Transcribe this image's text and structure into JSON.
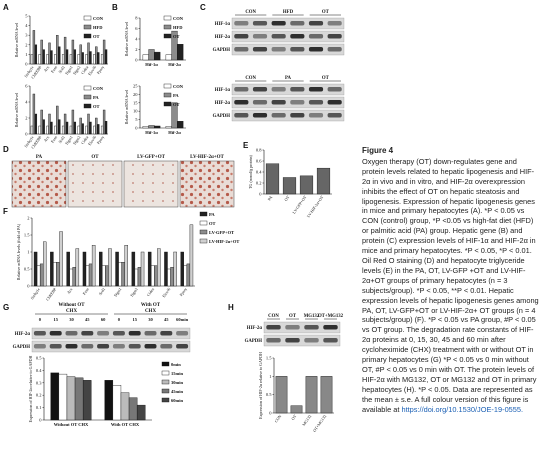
{
  "panels": [
    "A",
    "B",
    "C",
    "D",
    "E",
    "F",
    "G",
    "H"
  ],
  "chart_data": [
    {
      "type": "bar",
      "y_label": "Relative mRNA level",
      "categories": [
        "Srebp1c",
        "ChREBP",
        "Acc",
        "Fasn",
        "Scd1",
        "Dgat1",
        "Dgat2",
        "Cidea",
        "Elovl6",
        "Pparγ"
      ],
      "series": [
        {
          "name": "CON",
          "color": "#ffffff",
          "values": [
            1,
            1,
            1,
            1,
            1,
            1,
            1,
            1,
            1,
            1
          ]
        },
        {
          "name": "HFD",
          "color": "#8c8c8c",
          "values": [
            3.5,
            2.5,
            2.2,
            3,
            2.8,
            2.5,
            2,
            2.2,
            1.8,
            2.5
          ]
        },
        {
          "name": "OT",
          "color": "#222222",
          "values": [
            2,
            1.5,
            1.4,
            1.8,
            1.5,
            1.5,
            1.2,
            1.3,
            1.2,
            1.5
          ]
        }
      ],
      "ylim": [
        0,
        5
      ],
      "yticks": [
        0,
        1,
        2,
        3,
        4,
        5
      ]
    },
    {
      "type": "bar",
      "y_label": "Relative mRNA level",
      "categories": [
        "Srebp1c",
        "ChREBP",
        "Acc",
        "Fasn",
        "Scd1",
        "Dgat1",
        "Dgat2",
        "Cidea",
        "Elovl6",
        "Pparγ"
      ],
      "series": [
        {
          "name": "CON",
          "color": "#ffffff",
          "values": [
            1,
            1,
            1,
            1,
            1,
            1,
            1,
            1,
            1,
            1
          ]
        },
        {
          "name": "PA",
          "color": "#8c8c8c",
          "values": [
            5,
            3,
            2.5,
            3.5,
            2.5,
            3,
            2,
            2.5,
            2,
            3
          ]
        },
        {
          "name": "OT",
          "color": "#222222",
          "values": [
            2.5,
            1.8,
            1.5,
            1.8,
            1.5,
            1.5,
            1.3,
            1.5,
            1.2,
            1.6
          ]
        }
      ],
      "ylim": [
        0,
        6
      ],
      "yticks": [
        0,
        2,
        4,
        6
      ]
    },
    {
      "type": "bar",
      "y_label": "Relative mRNA level",
      "categories": [
        "Hif-1α",
        "Hif-2α"
      ],
      "series": [
        {
          "name": "CON",
          "color": "#ffffff",
          "values": [
            1,
            1
          ]
        },
        {
          "name": "HFD",
          "color": "#8c8c8c",
          "values": [
            2,
            5.5
          ]
        },
        {
          "name": "OT",
          "color": "#222222",
          "values": [
            1.5,
            3
          ]
        }
      ],
      "ylim": [
        0,
        8
      ],
      "yticks": [
        0,
        2,
        4,
        6,
        8
      ]
    },
    {
      "type": "bar",
      "y_label": "Relative mRNA level",
      "categories": [
        "Hif-1α",
        "Hif-2α"
      ],
      "series": [
        {
          "name": "CON",
          "color": "#ffffff",
          "values": [
            1,
            1
          ]
        },
        {
          "name": "PA",
          "color": "#8c8c8c",
          "values": [
            1.5,
            15
          ]
        },
        {
          "name": "OT",
          "color": "#222222",
          "values": [
            1.2,
            4
          ]
        }
      ],
      "ylim": [
        0,
        25
      ],
      "yticks": [
        0,
        5,
        10,
        15,
        20,
        25
      ]
    },
    {
      "type": "bar",
      "y_label": "TG (mmol/g protein)",
      "categories": [
        "PA",
        "OT",
        "LV-GFP+OT",
        "LV-HIF-2α+OT"
      ],
      "values": [
        0.55,
        0.3,
        0.33,
        0.47
      ],
      "color": "#666666",
      "ylim": [
        0,
        0.8
      ],
      "yticks": [
        0,
        0.2,
        0.4,
        0.6,
        0.8
      ]
    },
    {
      "type": "bar",
      "y_label": "Relative mRNA levels (fold of PA)",
      "categories": [
        "Srebp1c",
        "ChREBP",
        "Acc",
        "Fasn",
        "Scd1",
        "Dgat1",
        "Dgat2",
        "Cidea",
        "Elovl6",
        "Pparγ"
      ],
      "series": [
        {
          "name": "PA",
          "color": "#222222",
          "values": [
            1,
            1,
            1,
            1,
            1,
            1,
            1,
            1,
            1,
            1
          ]
        },
        {
          "name": "OT",
          "color": "#ffffff",
          "values": [
            0.6,
            0.7,
            0.5,
            0.6,
            0.6,
            0.7,
            0.5,
            0.6,
            0.5,
            0.6
          ]
        },
        {
          "name": "LV-GFP+OT",
          "color": "#8c8c8c",
          "values": [
            0.65,
            0.7,
            0.55,
            0.65,
            0.6,
            0.7,
            0.55,
            0.6,
            0.55,
            0.65
          ]
        },
        {
          "name": "LV-HIF-2α+OT",
          "color": "#d0d0d0",
          "values": [
            1.3,
            1.6,
            1.1,
            1.2,
            1.1,
            1.2,
            1,
            1.1,
            1,
            1.8
          ]
        }
      ],
      "ylim": [
        0,
        2
      ],
      "yticks": [
        0,
        0.5,
        1,
        1.5,
        2
      ]
    },
    {
      "type": "bar",
      "y_label": "Expression of HIF-2α relative to GAPDH",
      "categories": [
        "Without OT CHX",
        "With OT CHX"
      ],
      "series": [
        {
          "name": "0min",
          "color": "#111111",
          "values": [
            0.38,
            0.32
          ]
        },
        {
          "name": "15min",
          "color": "#ffffff",
          "values": [
            0.37,
            0.28
          ]
        },
        {
          "name": "30min",
          "color": "#bbbbbb",
          "values": [
            0.35,
            0.22
          ]
        },
        {
          "name": "45min",
          "color": "#777777",
          "values": [
            0.34,
            0.18
          ]
        },
        {
          "name": "60min",
          "color": "#444444",
          "values": [
            0.32,
            0.12
          ]
        }
      ],
      "ylim": [
        0,
        0.5
      ],
      "yticks": [
        0,
        0.1,
        0.2,
        0.3,
        0.4,
        0.5
      ]
    },
    {
      "type": "bar",
      "y_label": "Expression of HIF-2α relative to GAPDH",
      "categories": [
        "CON",
        "OT",
        "MG132",
        "OT+MG132"
      ],
      "values": [
        1,
        0.2,
        1,
        1
      ],
      "color": "#888888",
      "ylim": [
        0,
        1.5
      ],
      "yticks": [
        0,
        0.5,
        1,
        1.5
      ]
    }
  ],
  "blots": [
    {
      "groups": [
        {
          "title": "CON"
        },
        {
          "title": "HFD"
        },
        {
          "title": "OT"
        }
      ],
      "rows": [
        "HIF-1α",
        "HIF-2α",
        "GAPDH"
      ]
    },
    {
      "groups": [
        {
          "title": "CON"
        },
        {
          "title": "PA"
        },
        {
          "title": "OT"
        }
      ],
      "rows": [
        "HIF-1α",
        "HIF-2α",
        "GAPDH"
      ]
    },
    {
      "groups": [
        {
          "title": "Without OT",
          "sub": "CHX",
          "lanes": [
            "0",
            "15",
            "30",
            "45",
            "60"
          ]
        },
        {
          "title": "With OT",
          "sub": "CHX",
          "lanes": [
            "0",
            "15",
            "30",
            "45",
            "60min"
          ]
        }
      ],
      "rows": [
        "HIF-2α",
        "GAPDH"
      ]
    },
    {
      "groups": [
        {
          "title": "CON"
        },
        {
          "title": "OT"
        },
        {
          "title": "MG132"
        },
        {
          "title": "OT+MG132"
        }
      ],
      "rows": [
        "HIF-2α",
        "GAPDH"
      ]
    }
  ],
  "staining": [
    "PA",
    "OT",
    "LV-GFP+OT",
    "LV-HIF-2α+OT"
  ],
  "caption": {
    "title": "Figure 4",
    "text": "Oxygen therapy (OT) down-regulates gene and protein levels related to hepatic lipogenesis and HIF-2α in vivo and in vitro, and HIF-2α overexpression inhibits the effect of OT on hepatic steatosis and lipogenesis. Expression of hepatic lipogenesis genes in mice and primary hepatocytes (A). *P < 0.05 vs CON (control) group, *P <0.05 vs high-fat diet (HFD) or palmitic acid (PA) group. Hepatic gene (B) and protein (C) expression levels of HIF-1α and HIF-2α in mice and primary hepatocytes. *P < 0.05, *P < 0.01. Oil Red O staining (D) and hepatocyte triglyceride levels (E) in the PA, OT, LV-GFP +OT and LV-HIF-2α+OT groups of primary hepatocytes (n = 3 subjects/group). *P < 0.05, **P < 0.01. Hepatic expression levels of hepatic lipogenesis genes among PA, OT, LV-GFP+OT or LV-HIF-2α+ OT groups (n = 4 subjects/group) (F). *P < 0.05 vs PA group, #P < 0.05 vs OT group. The degradation rate constants of HIF-2α proteins at 0, 15, 30, 45 and 60 min after cycloheximide (CHX) treatment with or without OT in primary hepatocytes (G) *P < 0.05 vs 0 min without OT, #P < 0.05 vs 0 min with OT. The protein levels of HIF-2α with MG132, OT or MG132 and OT in primary hepatocytes (H). *P < 0.05. Data are represented as the mean ± s.e. A full colour version of this figure is available at",
    "link": "https://doi.org/10.1530/JOE-19-0555."
  }
}
